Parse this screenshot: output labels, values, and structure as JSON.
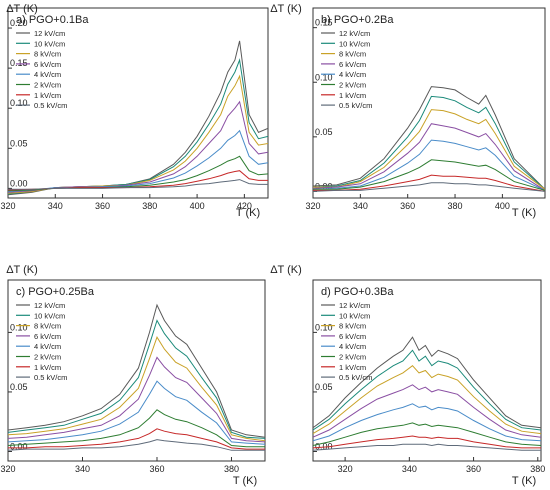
{
  "figure": {
    "x_label": "T (K)",
    "y_label": "ΔT (K)"
  },
  "chart_data": [
    {
      "type": "line",
      "panel_title": "a) PGO+0.1Ba",
      "xlabel": "T (K)",
      "ylabel": "ΔT (K)",
      "xlim": [
        320,
        430
      ],
      "ylim": [
        -0.012,
        0.225
      ],
      "xticks": [
        320,
        340,
        360,
        380,
        400,
        420
      ],
      "yticks": [
        0.0,
        0.05,
        0.1,
        0.15,
        0.2
      ],
      "ytick_labels": [
        "0.00",
        "0.05",
        "0.10",
        "0.15",
        "0.20"
      ],
      "x": [
        320,
        330,
        340,
        350,
        360,
        370,
        380,
        390,
        395,
        400,
        405,
        410,
        413,
        416,
        418,
        422,
        426,
        430
      ],
      "legend_location": "top-left",
      "grid": false,
      "series": [
        {
          "name": "12 kV/cm",
          "color": "#595959",
          "values": [
            -0.008,
            -0.005,
            0.001,
            0.002,
            0.003,
            0.005,
            0.012,
            0.03,
            0.045,
            0.065,
            0.09,
            0.12,
            0.145,
            0.16,
            0.184,
            0.092,
            0.07,
            0.075
          ]
        },
        {
          "name": "10 kV/cm",
          "color": "#1b8a7a",
          "values": [
            -0.007,
            -0.004,
            0.001,
            0.002,
            0.003,
            0.005,
            0.011,
            0.027,
            0.04,
            0.058,
            0.08,
            0.105,
            0.13,
            0.145,
            0.16,
            0.082,
            0.062,
            0.065
          ]
        },
        {
          "name": "8 kV/cm",
          "color": "#c9a227",
          "values": [
            -0.006,
            -0.004,
            0.001,
            0.002,
            0.003,
            0.004,
            0.01,
            0.023,
            0.034,
            0.05,
            0.07,
            0.092,
            0.115,
            0.128,
            0.14,
            0.07,
            0.054,
            0.056
          ]
        },
        {
          "name": "6 kV/cm",
          "color": "#8a4fa3",
          "values": [
            -0.005,
            -0.003,
            0.001,
            0.002,
            0.002,
            0.004,
            0.008,
            0.018,
            0.027,
            0.04,
            0.056,
            0.072,
            0.09,
            0.1,
            0.108,
            0.056,
            0.043,
            0.045
          ]
        },
        {
          "name": "4 kV/cm",
          "color": "#4a8cc9",
          "values": [
            -0.004,
            -0.002,
            0.001,
            0.001,
            0.002,
            0.003,
            0.006,
            0.013,
            0.019,
            0.028,
            0.038,
            0.05,
            0.06,
            0.066,
            0.072,
            0.04,
            0.03,
            0.032
          ]
        },
        {
          "name": "2 kV/cm",
          "color": "#2e7d32",
          "values": [
            -0.003,
            -0.002,
            0.0,
            0.001,
            0.001,
            0.002,
            0.004,
            0.008,
            0.011,
            0.016,
            0.022,
            0.029,
            0.034,
            0.037,
            0.04,
            0.022,
            0.017,
            0.018
          ]
        },
        {
          "name": "1 kV/cm",
          "color": "#c62828",
          "values": [
            -0.002,
            -0.001,
            0.0,
            0.001,
            0.001,
            0.001,
            0.002,
            0.004,
            0.006,
            0.009,
            0.012,
            0.016,
            0.019,
            0.021,
            0.022,
            0.012,
            0.01,
            0.01
          ]
        },
        {
          "name": "0.5 kV/cm",
          "color": "#5f6b7a",
          "values": [
            -0.001,
            -0.001,
            0.0,
            0.0,
            0.0,
            0.001,
            0.001,
            0.002,
            0.003,
            0.005,
            0.006,
            0.008,
            0.009,
            0.01,
            0.011,
            0.006,
            0.005,
            0.005
          ]
        }
      ]
    },
    {
      "type": "line",
      "panel_title": "b) PGO+0.2Ba",
      "xlabel": "T (K)",
      "ylabel": "ΔT (K)",
      "xlim": [
        320,
        418
      ],
      "ylim": [
        -0.006,
        0.168
      ],
      "xticks": [
        320,
        340,
        360,
        380,
        400
      ],
      "yticks": [
        0.0,
        0.05,
        0.1,
        0.15
      ],
      "ytick_labels": [
        "0.00",
        "0.05",
        "0.10",
        "0.15"
      ],
      "x": [
        320,
        330,
        340,
        350,
        360,
        365,
        370,
        375,
        380,
        385,
        390,
        393,
        397,
        405,
        418
      ],
      "legend_location": "top-left",
      "grid": false,
      "series": [
        {
          "name": "12 kV/cm",
          "color": "#595959",
          "values": [
            0.005,
            0.006,
            0.012,
            0.03,
            0.058,
            0.075,
            0.096,
            0.095,
            0.093,
            0.086,
            0.08,
            0.088,
            0.07,
            0.03,
            0.002
          ]
        },
        {
          "name": "10 kV/cm",
          "color": "#1b8a7a",
          "values": [
            0.004,
            0.005,
            0.01,
            0.026,
            0.05,
            0.065,
            0.087,
            0.086,
            0.083,
            0.077,
            0.072,
            0.077,
            0.062,
            0.027,
            0.002
          ]
        },
        {
          "name": "8 kV/cm",
          "color": "#c9a227",
          "values": [
            0.004,
            0.004,
            0.009,
            0.022,
            0.043,
            0.055,
            0.075,
            0.074,
            0.071,
            0.066,
            0.062,
            0.066,
            0.053,
            0.023,
            0.002
          ]
        },
        {
          "name": "6 kV/cm",
          "color": "#8a4fa3",
          "values": [
            0.003,
            0.004,
            0.007,
            0.018,
            0.035,
            0.045,
            0.062,
            0.06,
            0.058,
            0.054,
            0.05,
            0.053,
            0.043,
            0.019,
            0.001
          ]
        },
        {
          "name": "4 kV/cm",
          "color": "#4a8cc9",
          "values": [
            0.002,
            0.003,
            0.005,
            0.013,
            0.026,
            0.034,
            0.047,
            0.046,
            0.044,
            0.041,
            0.038,
            0.04,
            0.033,
            0.014,
            0.001
          ]
        },
        {
          "name": "2 kV/cm",
          "color": "#2e7d32",
          "values": [
            0.002,
            0.002,
            0.004,
            0.009,
            0.017,
            0.022,
            0.029,
            0.028,
            0.027,
            0.025,
            0.023,
            0.024,
            0.02,
            0.009,
            0.001
          ]
        },
        {
          "name": "1 kV/cm",
          "color": "#c62828",
          "values": [
            0.001,
            0.001,
            0.002,
            0.005,
            0.009,
            0.011,
            0.015,
            0.014,
            0.014,
            0.013,
            0.012,
            0.012,
            0.01,
            0.005,
            0.0
          ]
        },
        {
          "name": "0.5 kV/cm",
          "color": "#5f6b7a",
          "values": [
            0.0,
            0.001,
            0.001,
            0.003,
            0.005,
            0.006,
            0.008,
            0.008,
            0.007,
            0.007,
            0.006,
            0.006,
            0.005,
            0.003,
            0.0
          ]
        }
      ]
    },
    {
      "type": "line",
      "panel_title": "c) PGO+0.25Ba",
      "xlabel": "T (K)",
      "ylabel": "ΔT (K)",
      "xlim": [
        320,
        389
      ],
      "ylim": [
        -0.008,
        0.144
      ],
      "xticks": [
        320,
        340,
        360,
        380
      ],
      "yticks": [
        0.0,
        0.05,
        0.1
      ],
      "ytick_labels": [
        "0.00",
        "0.05",
        "0.10"
      ],
      "x": [
        320,
        325,
        330,
        335,
        340,
        345,
        350,
        355,
        358,
        360,
        362,
        365,
        368,
        372,
        376,
        380,
        384,
        389
      ],
      "legend_location": "top-left",
      "grid": false,
      "series": [
        {
          "name": "12 kV/cm",
          "color": "#595959",
          "values": [
            0.018,
            0.02,
            0.022,
            0.025,
            0.03,
            0.036,
            0.048,
            0.07,
            0.1,
            0.123,
            0.11,
            0.097,
            0.09,
            0.07,
            0.05,
            0.018,
            0.014,
            0.012
          ]
        },
        {
          "name": "10 kV/cm",
          "color": "#1b8a7a",
          "values": [
            0.016,
            0.018,
            0.02,
            0.022,
            0.027,
            0.032,
            0.043,
            0.062,
            0.09,
            0.11,
            0.099,
            0.087,
            0.08,
            0.062,
            0.045,
            0.016,
            0.012,
            0.011
          ]
        },
        {
          "name": "8 kV/cm",
          "color": "#c9a227",
          "values": [
            0.014,
            0.015,
            0.017,
            0.019,
            0.023,
            0.027,
            0.037,
            0.053,
            0.078,
            0.096,
            0.086,
            0.075,
            0.07,
            0.054,
            0.039,
            0.014,
            0.011,
            0.009
          ]
        },
        {
          "name": "6 kV/cm",
          "color": "#8a4fa3",
          "values": [
            0.011,
            0.012,
            0.014,
            0.016,
            0.019,
            0.022,
            0.03,
            0.044,
            0.064,
            0.079,
            0.071,
            0.062,
            0.058,
            0.045,
            0.032,
            0.011,
            0.009,
            0.008
          ]
        },
        {
          "name": "4 kV/cm",
          "color": "#4a8cc9",
          "values": [
            0.008,
            0.009,
            0.01,
            0.012,
            0.014,
            0.017,
            0.023,
            0.033,
            0.048,
            0.059,
            0.053,
            0.046,
            0.043,
            0.033,
            0.024,
            0.008,
            0.007,
            0.006
          ]
        },
        {
          "name": "2 kV/cm",
          "color": "#2e7d32",
          "values": [
            0.005,
            0.006,
            0.007,
            0.008,
            0.009,
            0.011,
            0.014,
            0.02,
            0.028,
            0.035,
            0.031,
            0.027,
            0.025,
            0.02,
            0.014,
            0.005,
            0.004,
            0.004
          ]
        },
        {
          "name": "1 kV/cm",
          "color": "#c62828",
          "values": [
            0.003,
            0.003,
            0.004,
            0.004,
            0.005,
            0.006,
            0.008,
            0.011,
            0.015,
            0.019,
            0.017,
            0.015,
            0.014,
            0.011,
            0.008,
            0.003,
            0.002,
            0.002
          ]
        },
        {
          "name": "0.5 kV/cm",
          "color": "#5f6b7a",
          "values": [
            0.001,
            0.002,
            0.002,
            0.002,
            0.003,
            0.003,
            0.004,
            0.006,
            0.008,
            0.01,
            0.009,
            0.008,
            0.007,
            0.006,
            0.004,
            0.001,
            0.001,
            0.001
          ]
        }
      ]
    },
    {
      "type": "line",
      "panel_title": "d) PGO+0.3Ba",
      "xlabel": "T (K)",
      "ylabel": "ΔT (K)",
      "xlim": [
        310,
        381
      ],
      "ylim": [
        -0.008,
        0.144
      ],
      "xticks": [
        320,
        340,
        360,
        380
      ],
      "yticks": [
        0.0,
        0.05,
        0.1
      ],
      "ytick_labels": [
        "0.00",
        "0.05",
        "0.10"
      ],
      "x": [
        310,
        315,
        320,
        325,
        330,
        335,
        338,
        341,
        343,
        345,
        347,
        349,
        352,
        355,
        360,
        365,
        370,
        375,
        381
      ],
      "legend_location": "top-left",
      "grid": false,
      "series": [
        {
          "name": "12 kV/cm",
          "color": "#595959",
          "values": [
            0.02,
            0.03,
            0.045,
            0.058,
            0.07,
            0.08,
            0.085,
            0.096,
            0.085,
            0.089,
            0.08,
            0.085,
            0.082,
            0.078,
            0.06,
            0.045,
            0.03,
            0.022,
            0.02
          ]
        },
        {
          "name": "10 kV/cm",
          "color": "#1b8a7a",
          "values": [
            0.018,
            0.027,
            0.04,
            0.052,
            0.063,
            0.072,
            0.076,
            0.085,
            0.076,
            0.08,
            0.072,
            0.076,
            0.074,
            0.07,
            0.054,
            0.04,
            0.027,
            0.02,
            0.018
          ]
        },
        {
          "name": "8 kV/cm",
          "color": "#c9a227",
          "values": [
            0.015,
            0.023,
            0.034,
            0.045,
            0.055,
            0.062,
            0.066,
            0.072,
            0.066,
            0.068,
            0.062,
            0.065,
            0.063,
            0.06,
            0.046,
            0.034,
            0.023,
            0.017,
            0.015
          ]
        },
        {
          "name": "6 kV/cm",
          "color": "#8a4fa3",
          "values": [
            0.012,
            0.018,
            0.027,
            0.036,
            0.044,
            0.049,
            0.052,
            0.056,
            0.052,
            0.054,
            0.05,
            0.052,
            0.05,
            0.048,
            0.037,
            0.027,
            0.018,
            0.014,
            0.012
          ]
        },
        {
          "name": "4 kV/cm",
          "color": "#4a8cc9",
          "values": [
            0.009,
            0.013,
            0.02,
            0.026,
            0.031,
            0.035,
            0.037,
            0.04,
            0.037,
            0.038,
            0.035,
            0.037,
            0.036,
            0.034,
            0.026,
            0.019,
            0.013,
            0.01,
            0.009
          ]
        },
        {
          "name": "2 kV/cm",
          "color": "#2e7d32",
          "values": [
            0.005,
            0.008,
            0.012,
            0.016,
            0.019,
            0.021,
            0.022,
            0.024,
            0.022,
            0.023,
            0.021,
            0.022,
            0.021,
            0.02,
            0.016,
            0.012,
            0.008,
            0.006,
            0.005
          ]
        },
        {
          "name": "1 kV/cm",
          "color": "#c62828",
          "values": [
            0.003,
            0.004,
            0.006,
            0.008,
            0.01,
            0.011,
            0.012,
            0.013,
            0.012,
            0.012,
            0.011,
            0.012,
            0.011,
            0.011,
            0.008,
            0.006,
            0.004,
            0.003,
            0.003
          ]
        },
        {
          "name": "0.5 kV/cm",
          "color": "#5f6b7a",
          "values": [
            0.001,
            0.002,
            0.003,
            0.004,
            0.005,
            0.005,
            0.006,
            0.006,
            0.006,
            0.006,
            0.005,
            0.006,
            0.005,
            0.005,
            0.004,
            0.003,
            0.002,
            0.001,
            0.001
          ]
        }
      ]
    }
  ]
}
